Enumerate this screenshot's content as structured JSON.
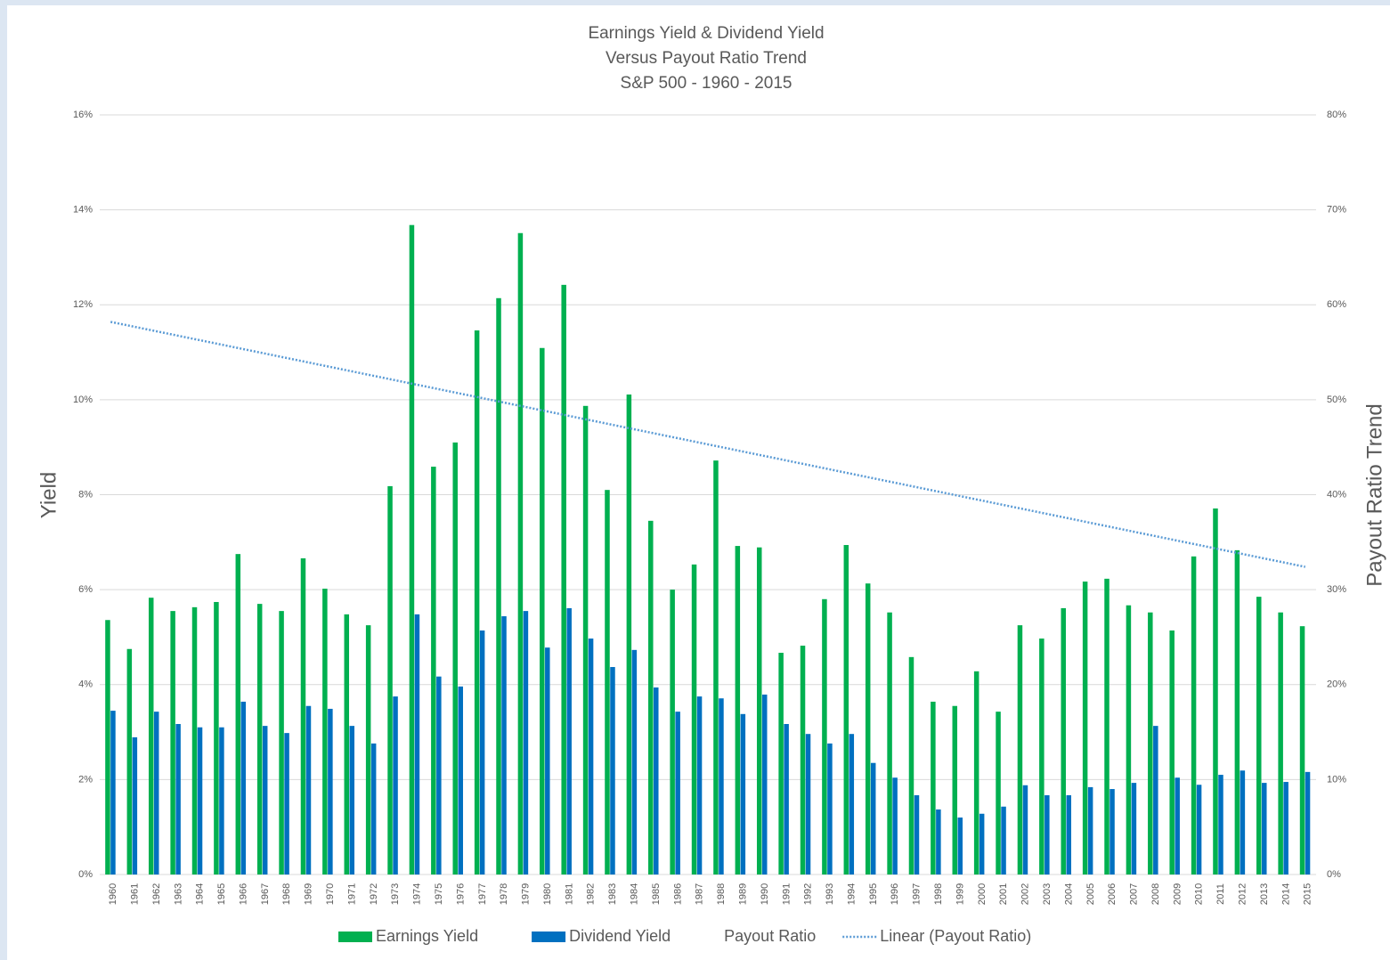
{
  "chart_data": {
    "type": "bar",
    "title": [
      "Earnings Yield & Dividend Yield",
      "Versus Payout Ratio Trend",
      "S&P 500 - 1960 - 2015"
    ],
    "y_label": "Yield",
    "y2_label": "Payout Ratio Trend",
    "categories": [
      "1960",
      "1961",
      "1962",
      "1963",
      "1964",
      "1965",
      "1966",
      "1967",
      "1968",
      "1969",
      "1970",
      "1971",
      "1972",
      "1973",
      "1974",
      "1975",
      "1976",
      "1977",
      "1978",
      "1979",
      "1980",
      "1981",
      "1982",
      "1983",
      "1984",
      "1985",
      "1986",
      "1987",
      "1988",
      "1989",
      "1990",
      "1991",
      "1992",
      "1993",
      "1994",
      "1995",
      "1996",
      "1997",
      "1998",
      "1999",
      "2000",
      "2001",
      "2002",
      "2003",
      "2004",
      "2005",
      "2006",
      "2007",
      "2008",
      "2009",
      "2010",
      "2011",
      "2012",
      "2013",
      "2014",
      "2015"
    ],
    "series": [
      {
        "name": "Earnings Yield",
        "color": "#00b050",
        "values": [
          5.36,
          4.75,
          5.83,
          5.55,
          5.63,
          5.74,
          6.75,
          5.7,
          5.55,
          6.66,
          6.02,
          5.48,
          5.25,
          8.18,
          13.68,
          8.59,
          9.1,
          11.46,
          12.14,
          13.51,
          11.09,
          12.42,
          9.87,
          8.1,
          10.11,
          7.45,
          6.0,
          6.53,
          8.72,
          6.92,
          6.89,
          4.67,
          4.82,
          5.8,
          6.94,
          6.13,
          5.52,
          4.58,
          3.64,
          3.55,
          4.28,
          3.43,
          5.25,
          4.97,
          5.61,
          6.17,
          6.23,
          5.67,
          5.52,
          5.14,
          6.7,
          7.71,
          6.83,
          5.85,
          5.52,
          5.23
        ]
      },
      {
        "name": "Dividend Yield",
        "color": "#0070c0",
        "values": [
          3.45,
          2.89,
          3.43,
          3.17,
          3.1,
          3.1,
          3.64,
          3.13,
          2.98,
          3.55,
          3.49,
          3.13,
          2.76,
          3.75,
          5.48,
          4.17,
          3.96,
          5.14,
          5.44,
          5.55,
          4.78,
          5.61,
          4.97,
          4.37,
          4.73,
          3.94,
          3.43,
          3.75,
          3.71,
          3.38,
          3.79,
          3.17,
          2.96,
          2.76,
          2.96,
          2.35,
          2.04,
          1.67,
          1.37,
          1.2,
          1.28,
          1.43,
          1.88,
          1.67,
          1.67,
          1.84,
          1.8,
          1.93,
          3.13,
          2.04,
          1.89,
          2.1,
          2.19,
          1.93,
          1.95,
          2.16
        ]
      },
      {
        "name": "Payout Ratio",
        "axis": "y2",
        "values": [
          null,
          null,
          null,
          null,
          null,
          null,
          null,
          null,
          null,
          null,
          null,
          null,
          null,
          null,
          null,
          null,
          null,
          null,
          null,
          null,
          null,
          null,
          null,
          null,
          null,
          null,
          null,
          null,
          null,
          null,
          null,
          null,
          null,
          null,
          null,
          null,
          null,
          null,
          null,
          null,
          null,
          null,
          null,
          null,
          null,
          null,
          null,
          null,
          null,
          null,
          null,
          null,
          null,
          null,
          null,
          null
        ]
      }
    ],
    "trendline": {
      "name": "Linear (Payout Ratio)",
      "axis": "y2",
      "color": "#5b9bd5",
      "values": [
        58.2,
        32.4
      ]
    },
    "ylim": [
      0,
      16
    ],
    "yticks": [
      {
        "value": 0,
        "label": "0%"
      },
      {
        "value": 2,
        "label": "2%"
      },
      {
        "value": 4,
        "label": "4%"
      },
      {
        "value": 6,
        "label": "6%"
      },
      {
        "value": 8,
        "label": "8%"
      },
      {
        "value": 10,
        "label": "10%"
      },
      {
        "value": 12,
        "label": "12%"
      },
      {
        "value": 14,
        "label": "14%"
      },
      {
        "value": 16,
        "label": "16%"
      }
    ],
    "y2lim": [
      0,
      80
    ],
    "y2ticks": [
      {
        "value": 0,
        "label": "0%"
      },
      {
        "value": 10,
        "label": "10%"
      },
      {
        "value": 20,
        "label": "20%"
      },
      {
        "value": 30,
        "label": "30%"
      },
      {
        "value": 40,
        "label": "40%"
      },
      {
        "value": 50,
        "label": "50%"
      },
      {
        "value": 60,
        "label": "60%"
      },
      {
        "value": 70,
        "label": "70%"
      },
      {
        "value": 80,
        "label": "80%"
      }
    ],
    "grid": true,
    "legend": "bottom"
  }
}
